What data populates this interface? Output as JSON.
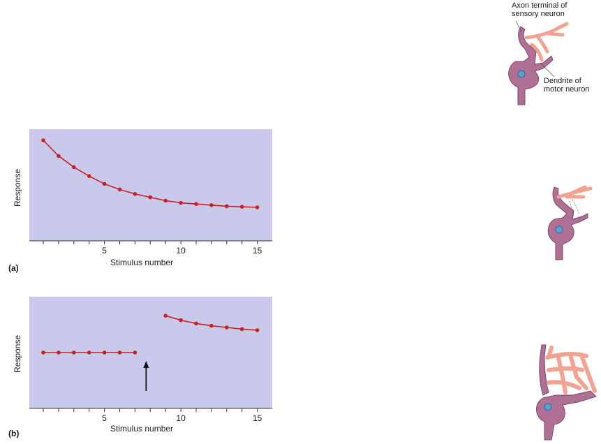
{
  "figure": {
    "panel_a_tag": "(a)",
    "panel_b_tag": "(b)"
  },
  "neuron_labels": {
    "axon_terminal": [
      "Axon terminal of",
      "sensory neuron"
    ],
    "dendrite": [
      "Dendrite of",
      "motor neuron"
    ]
  },
  "colors": {
    "plot_bg": "#c9c9ec",
    "series": "#cc1f1f",
    "neuron_body": "#b06f94",
    "axon": "#f2a291",
    "nucleus": "#5a9fd6"
  },
  "chart_data": [
    {
      "type": "line",
      "panel": "(a)",
      "title": "",
      "xlabel": "Stimulus number",
      "ylabel": "Response",
      "xlim": [
        0,
        16
      ],
      "ylim": [
        0,
        10
      ],
      "xticks": [
        5,
        10,
        15
      ],
      "grid": false,
      "series": [
        {
          "x": [
            1,
            2,
            3,
            4,
            5,
            6,
            7,
            8,
            9,
            10,
            11,
            12,
            13,
            14,
            15
          ],
          "values": [
            9.0,
            7.6,
            6.6,
            5.8,
            5.1,
            4.6,
            4.2,
            3.9,
            3.6,
            3.4,
            3.3,
            3.2,
            3.1,
            3.05,
            3.0
          ]
        }
      ]
    },
    {
      "type": "line",
      "panel": "(b)",
      "title": "",
      "xlabel": "Stimulus number",
      "ylabel": "Response",
      "xlim": [
        0,
        16
      ],
      "ylim": [
        0,
        10
      ],
      "xticks": [
        5,
        10,
        15
      ],
      "grid": false,
      "annotation": "arrow at stimulus 7.5",
      "arrow_x": 7.5,
      "series": [
        {
          "x": [
            1,
            2,
            3,
            4,
            5,
            6,
            7
          ],
          "values": [
            5.0,
            5.0,
            5.0,
            5.0,
            5.0,
            5.0,
            5.0
          ]
        },
        {
          "x": [
            9,
            10,
            11,
            12,
            13,
            14,
            15
          ],
          "values": [
            8.3,
            7.9,
            7.6,
            7.4,
            7.25,
            7.1,
            7.0
          ]
        }
      ]
    }
  ]
}
